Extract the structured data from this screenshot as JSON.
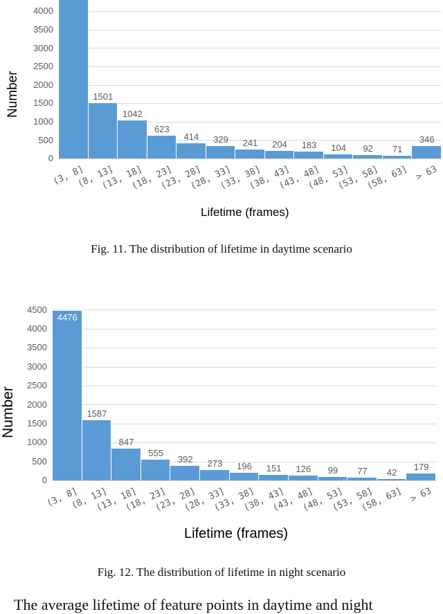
{
  "chart_data": [
    {
      "type": "bar",
      "title": "",
      "xlabel": "Lifetime (frames)",
      "ylabel": "Number",
      "categories": [
        "(3, 8]",
        "(8, 13]",
        "(13, 18]",
        "(18, 23]",
        "(23, 28]",
        "(28, 33]",
        "(33, 38]",
        "(38, 43]",
        "(43, 48]",
        "(48, 53]",
        "(53, 58]",
        "(58, 63]",
        "> 63"
      ],
      "values": [
        null,
        1501,
        1042,
        623,
        414,
        329,
        241,
        204,
        183,
        104,
        92,
        71,
        346
      ],
      "value_labels": [
        "",
        "1501",
        "1042",
        "623",
        "414",
        "329",
        "241",
        "204",
        "183",
        "104",
        "92",
        "71",
        "346"
      ],
      "notes": "First bar exceeds 4000; its value label is cropped at top of image",
      "yticks": [
        0,
        500,
        1000,
        1500,
        2000,
        2500,
        3000,
        3500,
        4000
      ],
      "ylim": [
        0,
        4000
      ],
      "grid": true,
      "legend": null,
      "color": "#5b9bd5"
    },
    {
      "type": "bar",
      "title": "",
      "xlabel": "Lifetime (frames)",
      "ylabel": "Number",
      "categories": [
        "(3, 8]",
        "(8, 13]",
        "(13, 18]",
        "(18, 23]",
        "(23, 28]",
        "(28, 33]",
        "(33, 38]",
        "(38, 43]",
        "(43, 48]",
        "(48, 53]",
        "(53, 58]",
        "(58, 63]",
        "> 63"
      ],
      "values": [
        4476,
        1587,
        847,
        555,
        392,
        273,
        196,
        151,
        126,
        99,
        77,
        42,
        179
      ],
      "value_labels": [
        "4476",
        "1587",
        "847",
        "555",
        "392",
        "273",
        "196",
        "151",
        "126",
        "99",
        "77",
        "42",
        "179"
      ],
      "yticks": [
        0,
        500,
        1000,
        1500,
        2000,
        2500,
        3000,
        3500,
        4000,
        4500
      ],
      "ylim": [
        0,
        4500
      ],
      "grid": true,
      "legend": null,
      "color": "#5b9bd5"
    }
  ],
  "figures": {
    "fig11": {
      "caption": "Fig. 11.  The distribution of lifetime in daytime scenario",
      "ylabel": "Number",
      "xlabel": "Lifetime (frames)"
    },
    "fig12": {
      "caption": "Fig. 12.  The distribution of lifetime in night scenario",
      "ylabel": "Number",
      "xlabel": "Lifetime (frames)"
    }
  },
  "body_text": "The average lifetime of feature points in daytime and night"
}
